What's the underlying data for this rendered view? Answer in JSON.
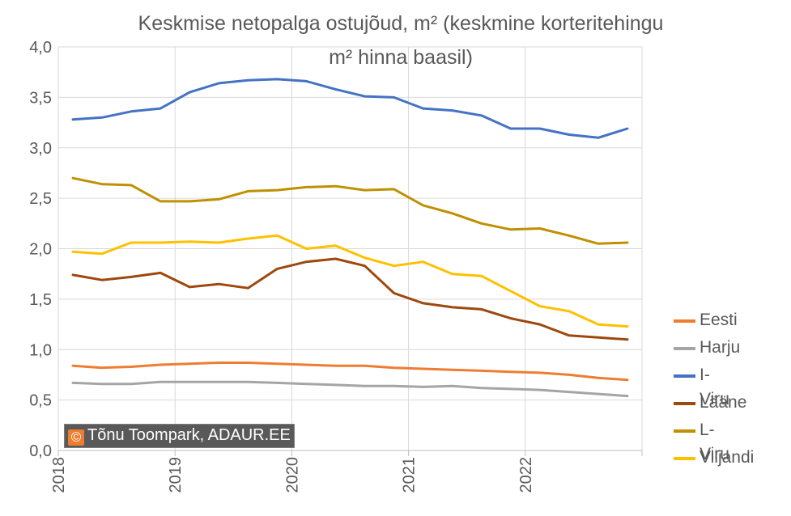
{
  "chart_data": {
    "type": "line",
    "title_line1": "Keskmise netopalga ostujõud, m² (keskmine korteritehingu",
    "title_line2": "m² hinna baasil)",
    "xlabel": "",
    "ylabel": "",
    "ylim": [
      0,
      4
    ],
    "xlim": [
      2018.0,
      2023.0
    ],
    "y_ticks": [
      "0,0",
      "0,5",
      "1,0",
      "1,5",
      "2,0",
      "2,5",
      "3,0",
      "3,5",
      "4,0"
    ],
    "x_ticks": [
      "2018",
      "2019",
      "2020",
      "2021",
      "2022"
    ],
    "grid": "vertical and horizontal",
    "legend_position": "right",
    "x": [
      2018.125,
      2018.375,
      2018.625,
      2018.875,
      2019.125,
      2019.375,
      2019.625,
      2019.875,
      2020.125,
      2020.375,
      2020.625,
      2020.875,
      2021.125,
      2021.375,
      2021.625,
      2021.875,
      2022.125,
      2022.375,
      2022.625,
      2022.875
    ],
    "series": [
      {
        "name": "Eesti",
        "color": "#ed7d31",
        "values": [
          0.84,
          0.82,
          0.83,
          0.85,
          0.86,
          0.87,
          0.87,
          0.86,
          0.85,
          0.84,
          0.84,
          0.82,
          0.81,
          0.8,
          0.79,
          0.78,
          0.77,
          0.75,
          0.72,
          0.7
        ]
      },
      {
        "name": "Harju",
        "color": "#a5a5a5",
        "values": [
          0.67,
          0.66,
          0.66,
          0.68,
          0.68,
          0.68,
          0.68,
          0.67,
          0.66,
          0.65,
          0.64,
          0.64,
          0.63,
          0.64,
          0.62,
          0.61,
          0.6,
          0.58,
          0.56,
          0.54
        ]
      },
      {
        "name": "I-Viru",
        "color": "#4472c4",
        "values": [
          3.28,
          3.3,
          3.36,
          3.39,
          3.55,
          3.64,
          3.67,
          3.68,
          3.66,
          3.58,
          3.51,
          3.5,
          3.39,
          3.37,
          3.32,
          3.19,
          3.19,
          3.13,
          3.1,
          3.19
        ]
      },
      {
        "name": "Lääne",
        "color": "#9e480e",
        "values": [
          1.74,
          1.69,
          1.72,
          1.76,
          1.62,
          1.65,
          1.61,
          1.8,
          1.87,
          1.9,
          1.83,
          1.56,
          1.46,
          1.42,
          1.4,
          1.31,
          1.25,
          1.14,
          1.12,
          1.1
        ]
      },
      {
        "name": "L-Viru",
        "color": "#bf9000",
        "values": [
          2.7,
          2.64,
          2.63,
          2.47,
          2.47,
          2.49,
          2.57,
          2.58,
          2.61,
          2.62,
          2.58,
          2.59,
          2.43,
          2.35,
          2.25,
          2.19,
          2.2,
          2.13,
          2.05,
          2.06
        ]
      },
      {
        "name": "Viljandi",
        "color": "#ffc000",
        "values": [
          1.97,
          1.95,
          2.06,
          2.06,
          2.07,
          2.06,
          2.1,
          2.13,
          2.0,
          2.03,
          1.91,
          1.83,
          1.87,
          1.75,
          1.73,
          1.58,
          1.43,
          1.38,
          1.25,
          1.23
        ]
      }
    ],
    "annotation": "Tõnu Toompark, ADAUR.EE",
    "annotation_icon": "©"
  }
}
